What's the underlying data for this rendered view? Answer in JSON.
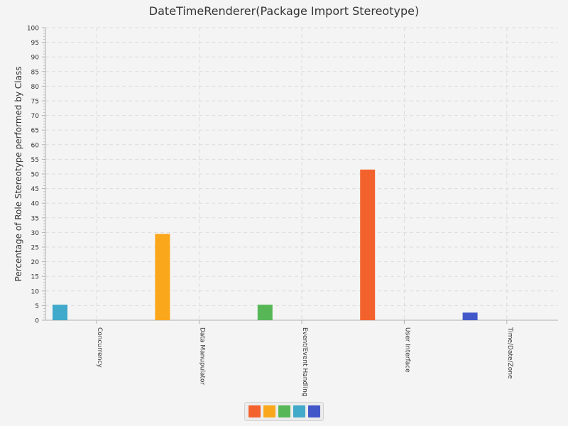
{
  "chart_data": {
    "type": "bar",
    "title": "DateTimeRenderer(Package Import Stereotype)",
    "xlabel": "",
    "ylabel": "Percentage of Role Stereotype performed by Class",
    "ylim": [
      0,
      100
    ],
    "ytick_step": 5,
    "grid": true,
    "categories": [
      "Concurrency",
      "Data Manupulator",
      "Event/Event Handling",
      "User Interface",
      "Time/Date/Zone"
    ],
    "series": [
      {
        "name": "",
        "color": "#f3622d",
        "values": [
          0,
          0,
          0,
          51.5,
          0
        ]
      },
      {
        "name": "",
        "color": "#fba71b",
        "values": [
          0,
          29.5,
          0,
          0,
          0
        ]
      },
      {
        "name": "",
        "color": "#57b757",
        "values": [
          0,
          0,
          5.3,
          0,
          0
        ]
      },
      {
        "name": "",
        "color": "#41a9c9",
        "values": [
          5.3,
          0,
          0,
          0,
          0
        ]
      },
      {
        "name": "",
        "color": "#4258c9",
        "values": [
          0,
          0,
          0,
          0,
          2.6
        ]
      }
    ],
    "legend_position": "bottom-center"
  }
}
